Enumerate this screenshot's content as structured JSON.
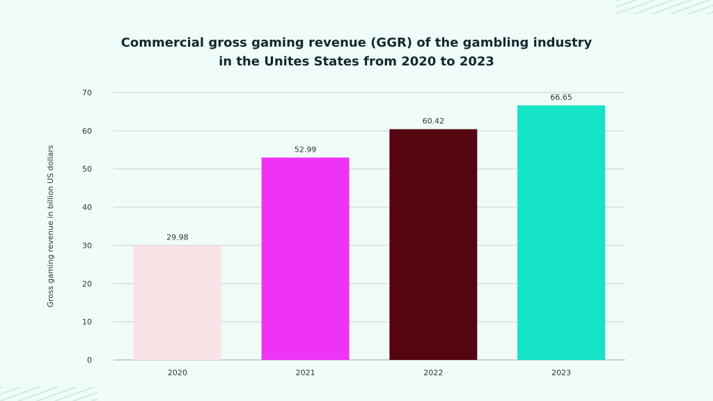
{
  "chart_data": {
    "type": "bar",
    "title": "Commercial gross gaming revenue (GGR) of the gambling industry in the Unites States from 2020 to 2023",
    "title_lines": [
      "Commercial gross gaming revenue (GGR) of the gambling industry",
      "in the Unites States from 2020 to 2023"
    ],
    "categories": [
      "2020",
      "2021",
      "2022",
      "2023"
    ],
    "values": [
      29.98,
      52.99,
      60.42,
      66.65
    ],
    "data_labels": [
      "29.98",
      "52.99",
      "60.42",
      "66.65"
    ],
    "colors": [
      "#f9e3e7",
      "#ef33f5",
      "#540510",
      "#14e3c5"
    ],
    "xlabel": "",
    "ylabel": "Gross gaming revenue in billion US dollars",
    "ylim": [
      0,
      70
    ],
    "yticks": [
      0,
      10,
      20,
      30,
      40,
      50,
      60,
      70
    ],
    "grid": true,
    "legend": "none"
  }
}
